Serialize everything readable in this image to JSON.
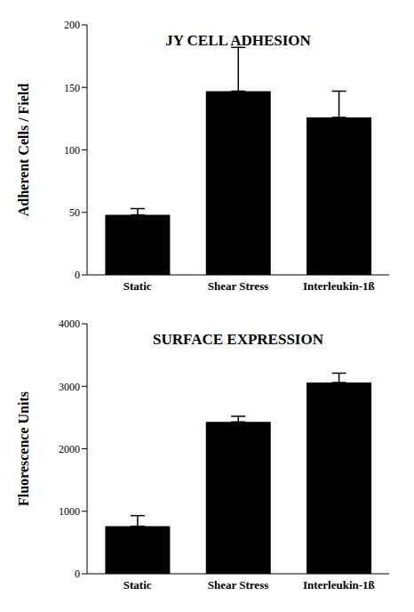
{
  "chart_data": [
    {
      "type": "bar",
      "title": "JY CELL ADHESION",
      "y_label": "Adherent Cells / Field",
      "categories": [
        "Static",
        "Shear Stress",
        "Interleukin-1ß"
      ],
      "values": [
        48,
        147,
        126
      ],
      "errors": [
        5,
        35,
        21
      ],
      "color": "#000000",
      "ylim": [
        0,
        200
      ],
      "yticks": [
        0,
        50,
        100,
        150,
        200
      ],
      "grid": false
    },
    {
      "type": "bar",
      "title": "SURFACE EXPRESSION",
      "y_label": "Fluorescence Units",
      "categories": [
        "Static",
        "Shear Stress",
        "Interleukin-1ß"
      ],
      "values": [
        760,
        2430,
        3060
      ],
      "errors": [
        170,
        90,
        150
      ],
      "color": "#000000",
      "ylim": [
        0,
        4000
      ],
      "yticks": [
        0,
        1000,
        2000,
        3000,
        4000
      ],
      "grid": false
    }
  ]
}
